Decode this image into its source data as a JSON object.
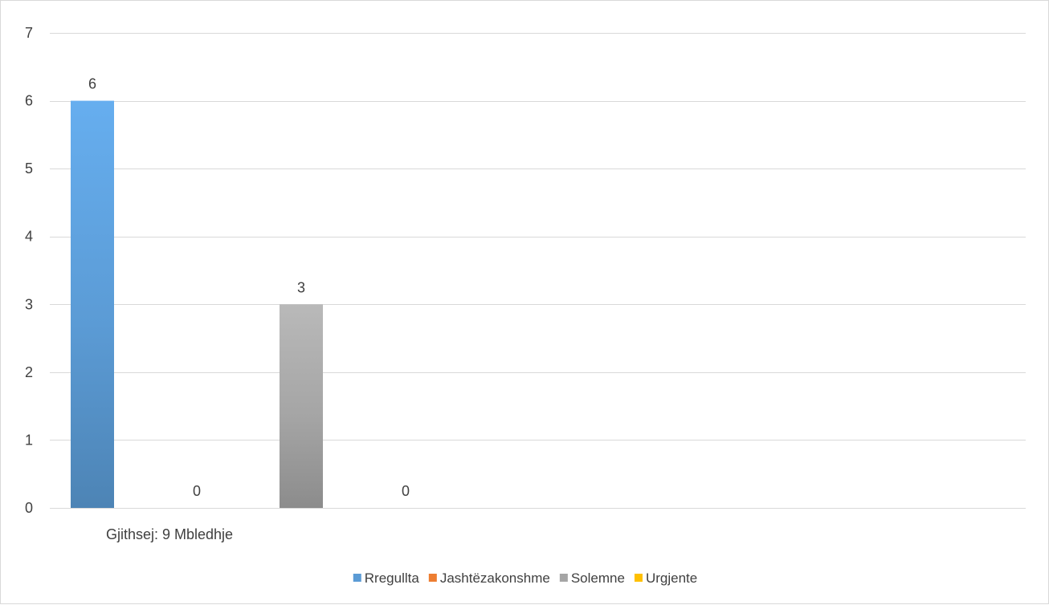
{
  "chart_data": {
    "type": "bar",
    "categories": [
      "Gjithsej: 9 Mbledhje"
    ],
    "series": [
      {
        "name": "Rregullta",
        "values": [
          6
        ],
        "color": "#5b9bd5"
      },
      {
        "name": "Jashtëzakonshme",
        "values": [
          0
        ],
        "color": "#ed7d31"
      },
      {
        "name": "Solemne",
        "values": [
          3
        ],
        "color": "#a5a5a5"
      },
      {
        "name": "Urgjente",
        "values": [
          0
        ],
        "color": "#ffc000"
      }
    ],
    "ylim": [
      0,
      7
    ],
    "yticks": [
      0,
      1,
      2,
      3,
      4,
      5,
      6,
      7
    ],
    "grid": true,
    "data_labels": true,
    "legend_position": "bottom"
  }
}
